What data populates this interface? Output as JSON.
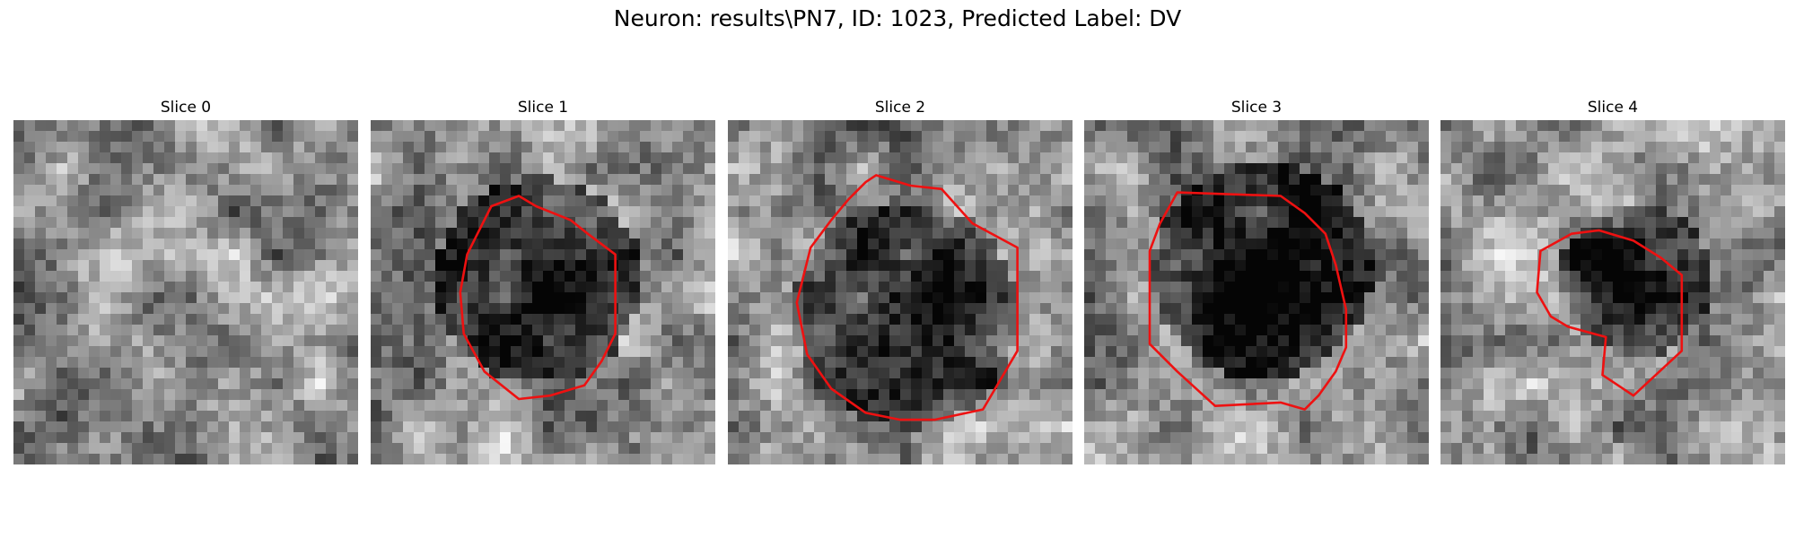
{
  "figure": {
    "title": "Neuron: results\\PN7, ID: 1023, Predicted Label: DV",
    "panels": [
      {
        "label": "Slice 0",
        "seed": 11,
        "dark_blob": [
          0.5,
          0.5,
          0.2,
          0.05
        ],
        "contour": []
      },
      {
        "label": "Slice 1",
        "seed": 23,
        "dark_blob": [
          0.47,
          0.45,
          0.3,
          0.55
        ],
        "contour": [
          [
            0.43,
            0.22
          ],
          [
            0.48,
            0.25
          ],
          [
            0.58,
            0.29
          ],
          [
            0.63,
            0.33
          ],
          [
            0.71,
            0.39
          ],
          [
            0.71,
            0.62
          ],
          [
            0.67,
            0.7
          ],
          [
            0.62,
            0.77
          ],
          [
            0.52,
            0.8
          ],
          [
            0.43,
            0.81
          ],
          [
            0.33,
            0.73
          ],
          [
            0.27,
            0.62
          ],
          [
            0.26,
            0.5
          ],
          [
            0.28,
            0.39
          ],
          [
            0.31,
            0.33
          ],
          [
            0.35,
            0.25
          ]
        ]
      },
      {
        "label": "Slice 2",
        "seed": 37,
        "dark_blob": [
          0.5,
          0.55,
          0.33,
          0.45
        ],
        "contour": [
          [
            0.43,
            0.16
          ],
          [
            0.53,
            0.19
          ],
          [
            0.62,
            0.2
          ],
          [
            0.71,
            0.3
          ],
          [
            0.84,
            0.37
          ],
          [
            0.84,
            0.67
          ],
          [
            0.74,
            0.84
          ],
          [
            0.6,
            0.87
          ],
          [
            0.5,
            0.87
          ],
          [
            0.4,
            0.85
          ],
          [
            0.3,
            0.78
          ],
          [
            0.23,
            0.68
          ],
          [
            0.2,
            0.53
          ],
          [
            0.24,
            0.37
          ],
          [
            0.3,
            0.29
          ],
          [
            0.35,
            0.23
          ],
          [
            0.4,
            0.18
          ]
        ]
      },
      {
        "label": "Slice 3",
        "seed": 53,
        "dark_blob": [
          0.5,
          0.42,
          0.32,
          0.55
        ],
        "contour": [
          [
            0.27,
            0.21
          ],
          [
            0.57,
            0.22
          ],
          [
            0.64,
            0.27
          ],
          [
            0.7,
            0.33
          ],
          [
            0.73,
            0.42
          ],
          [
            0.76,
            0.55
          ],
          [
            0.76,
            0.66
          ],
          [
            0.73,
            0.73
          ],
          [
            0.68,
            0.8
          ],
          [
            0.64,
            0.84
          ],
          [
            0.57,
            0.82
          ],
          [
            0.38,
            0.83
          ],
          [
            0.27,
            0.73
          ],
          [
            0.19,
            0.65
          ],
          [
            0.19,
            0.38
          ],
          [
            0.22,
            0.3
          ]
        ]
      },
      {
        "label": "Slice 4",
        "seed": 71,
        "dark_blob": [
          0.55,
          0.45,
          0.22,
          0.5
        ],
        "contour": [
          [
            0.38,
            0.33
          ],
          [
            0.46,
            0.32
          ],
          [
            0.56,
            0.35
          ],
          [
            0.64,
            0.4
          ],
          [
            0.7,
            0.45
          ],
          [
            0.7,
            0.67
          ],
          [
            0.56,
            0.8
          ],
          [
            0.47,
            0.74
          ],
          [
            0.48,
            0.63
          ],
          [
            0.37,
            0.6
          ],
          [
            0.32,
            0.57
          ],
          [
            0.28,
            0.5
          ],
          [
            0.29,
            0.38
          ]
        ]
      }
    ]
  }
}
